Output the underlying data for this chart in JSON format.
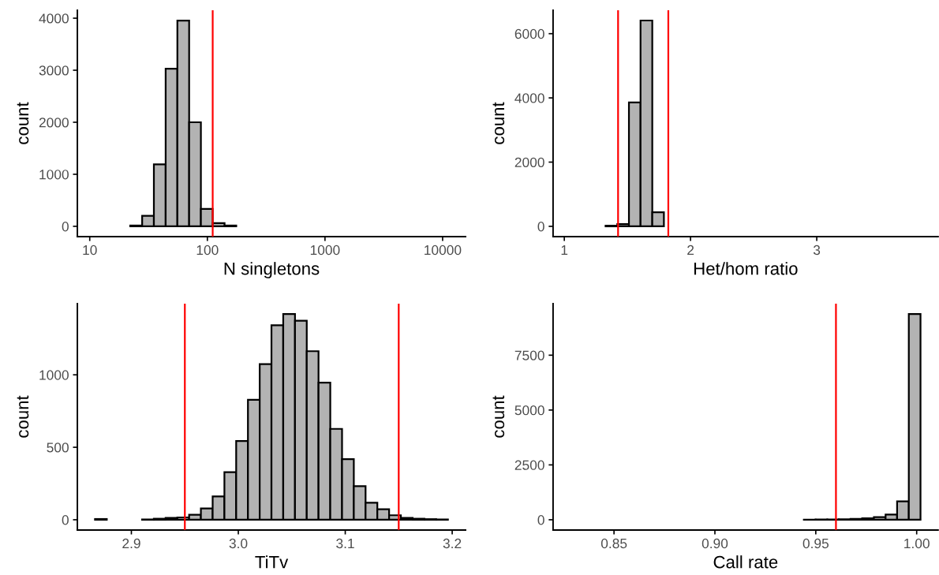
{
  "chart_data": [
    {
      "type": "histogram",
      "xlabel": "N singletons",
      "ylabel": "count",
      "log": "x",
      "color": "#b3b3b3",
      "bins": [
        11.1,
        14.0,
        17.6,
        22.1,
        27.9,
        35.1,
        44.2,
        55.6,
        70.0,
        88.1,
        111,
        140,
        176,
        222,
        279,
        351,
        442,
        557,
        701,
        882,
        1110,
        1400,
        1760,
        2220,
        2790,
        3510,
        4420,
        5570,
        7010,
        8820,
        11100
      ],
      "values": [
        0,
        0,
        0,
        15,
        200,
        1190,
        3030,
        3955,
        2000,
        335,
        60,
        15,
        0,
        0,
        0,
        0,
        0,
        0,
        0,
        0,
        0,
        0,
        0,
        0,
        0,
        0,
        0,
        0,
        0,
        0
      ],
      "xlim": [
        7.85,
        15670
      ],
      "xticks": [
        10,
        100,
        1000,
        10000
      ],
      "ylim": [
        -198,
        4153
      ],
      "yticks": [
        0,
        1000,
        2000,
        3000,
        4000
      ],
      "ref_lines": [
        {
          "axis": "x",
          "value": 111,
          "color": "#ff0000"
        }
      ]
    },
    {
      "type": "histogram",
      "xlabel": "Het/hom ratio",
      "ylabel": "count",
      "color": "#b3b3b3",
      "bins": [
        1.05,
        1.142,
        1.235,
        1.327,
        1.42,
        1.512,
        1.604,
        1.697,
        1.789,
        1.882,
        1.974,
        2.066,
        2.159,
        2.251,
        2.344,
        2.436,
        2.528,
        2.621,
        2.713,
        2.806,
        2.898,
        2.99,
        3.083,
        3.175,
        3.268,
        3.36,
        3.452,
        3.545,
        3.637,
        3.73,
        3.822
      ],
      "values": [
        0,
        0,
        0,
        20,
        70,
        3860,
        6410,
        440,
        0,
        0,
        0,
        0,
        0,
        0,
        0,
        0,
        0,
        0,
        0,
        0,
        0,
        0,
        0,
        0,
        0,
        0,
        0,
        0,
        0,
        0
      ],
      "xlim": [
        0.911,
        3.961
      ],
      "xticks": [
        1,
        2,
        3
      ],
      "ylim": [
        -320,
        6730
      ],
      "yticks": [
        0,
        2000,
        4000,
        6000
      ],
      "ref_lines": [
        {
          "axis": "x",
          "value": 1.426,
          "color": "#ff0000"
        },
        {
          "axis": "x",
          "value": 1.824,
          "color": "#ff0000"
        }
      ]
    },
    {
      "type": "histogram",
      "xlabel": "TiTv",
      "ylabel": "count",
      "color": "#b3b3b3",
      "bins": [
        2.866,
        2.877,
        2.888,
        2.899,
        2.91,
        2.921,
        2.932,
        2.943,
        2.954,
        2.965,
        2.976,
        2.987,
        2.998,
        3.009,
        3.02,
        3.031,
        3.042,
        3.053,
        3.064,
        3.075,
        3.086,
        3.097,
        3.108,
        3.119,
        3.13,
        3.141,
        3.152,
        3.163,
        3.174,
        3.185,
        3.196
      ],
      "values": [
        5,
        0,
        0,
        0,
        2,
        7,
        13,
        16,
        34,
        78,
        161,
        328,
        543,
        828,
        1074,
        1342,
        1420,
        1373,
        1163,
        946,
        627,
        418,
        232,
        118,
        72,
        31,
        13,
        7,
        4,
        2
      ],
      "xlim": [
        2.8495,
        3.2125
      ],
      "xticks": [
        2.9,
        {
          "value": 3.0,
          "label": "3.0"
        },
        3.1,
        3.2
      ],
      "ylim": [
        -71,
        1491
      ],
      "yticks": [
        0,
        500,
        1000
      ],
      "ref_lines": [
        {
          "axis": "x",
          "value": 2.95,
          "color": "#ff0000"
        },
        {
          "axis": "x",
          "value": 3.15,
          "color": "#ff0000"
        }
      ]
    },
    {
      "type": "histogram",
      "xlabel": "Call rate",
      "ylabel": "count",
      "color": "#b3b3b3",
      "bins": [
        0.8285,
        0.8343,
        0.8401,
        0.8458,
        0.8516,
        0.8574,
        0.8632,
        0.869,
        0.8747,
        0.8805,
        0.8863,
        0.8921,
        0.8979,
        0.9036,
        0.9094,
        0.9152,
        0.921,
        0.9268,
        0.9325,
        0.9383,
        0.9441,
        0.9499,
        0.9557,
        0.9614,
        0.9672,
        0.973,
        0.9788,
        0.9846,
        0.9903,
        0.9961,
        1.0019
      ],
      "values": [
        0,
        0,
        0,
        0,
        0,
        0,
        0,
        0,
        0,
        0,
        0,
        0,
        0,
        0,
        0,
        0,
        0,
        0,
        0,
        0,
        5,
        10,
        15,
        25,
        40,
        70,
        120,
        240,
        840,
        9380
      ],
      "xlim": [
        0.8198,
        1.0106
      ],
      "xticks": [
        {
          "value": 0.85,
          "label": "0.85"
        },
        {
          "value": 0.9,
          "label": "0.90"
        },
        {
          "value": 0.95,
          "label": "0.95"
        },
        {
          "value": 1.0,
          "label": "1.00"
        }
      ],
      "ylim": [
        -469,
        9849
      ],
      "yticks": [
        0,
        2500,
        5000,
        7500
      ],
      "ref_lines": [
        {
          "axis": "x",
          "value": 0.96,
          "color": "#ff0000"
        }
      ]
    }
  ]
}
